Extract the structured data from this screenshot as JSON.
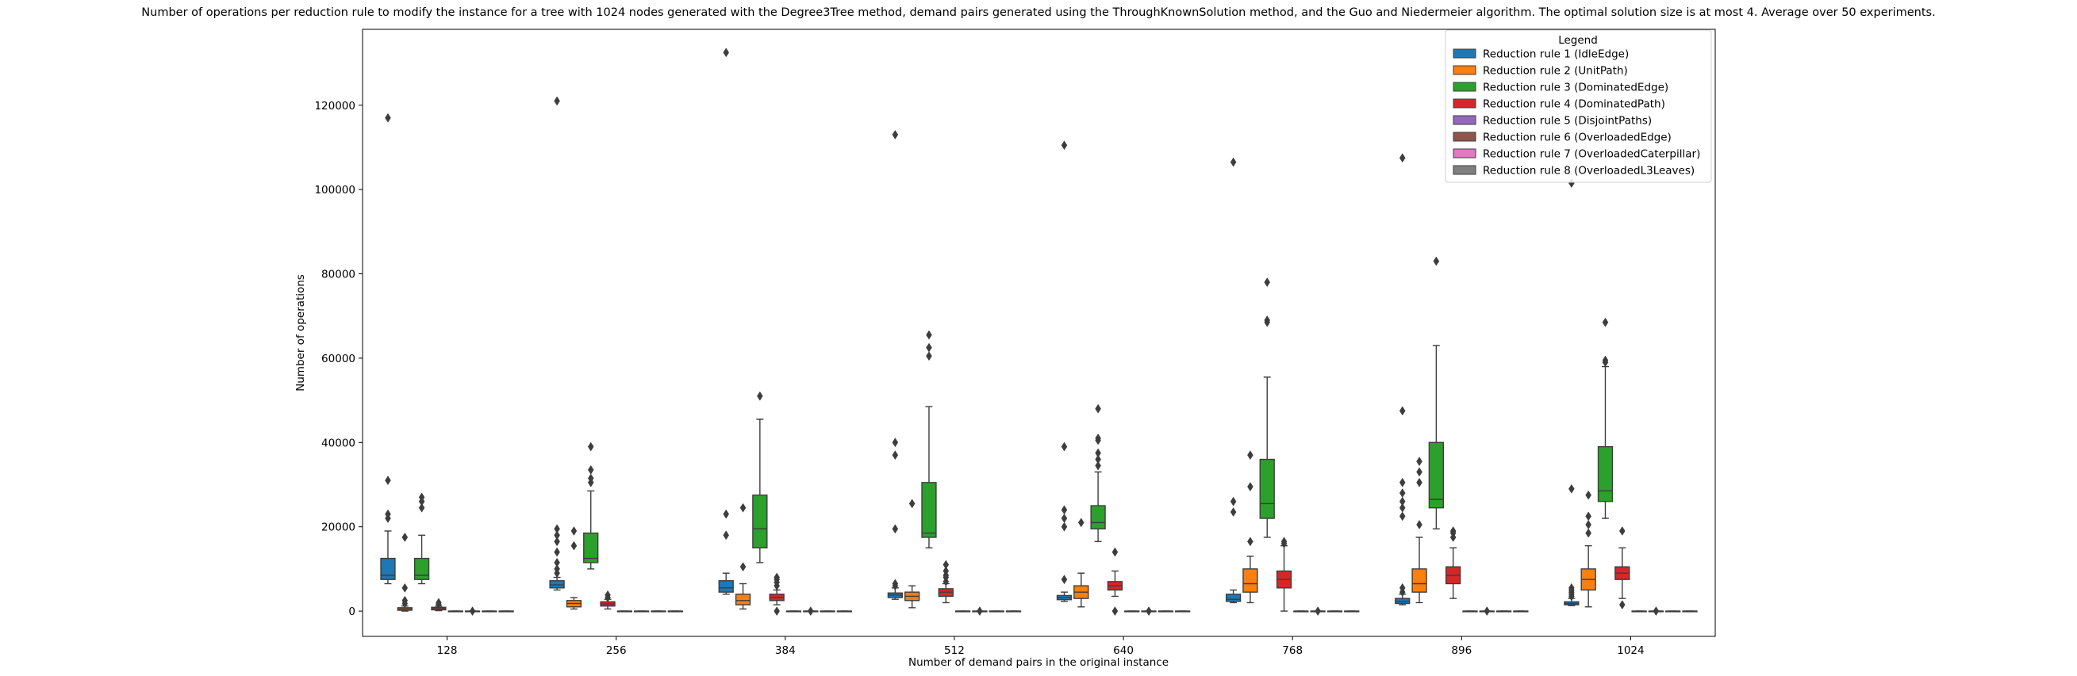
{
  "chart_data": {
    "type": "box",
    "title": "Number of operations per reduction rule to modify the instance for a tree with 1024 nodes generated with the Degree3Tree method, demand pairs generated using the ThroughKnownSolution method, and the Guo and Niedermeier algorithm. The optimal solution size is at most 4. Average over 50 experiments.",
    "xlabel": "Number of demand pairs in the original instance",
    "ylabel": "Number of operations",
    "categories": [
      "128",
      "256",
      "384",
      "512",
      "640",
      "768",
      "896",
      "1024"
    ],
    "ylim": [
      -6000,
      138000
    ],
    "yticks": [
      0,
      20000,
      40000,
      60000,
      80000,
      100000,
      120000
    ],
    "ytick_labels": [
      "0",
      "20000",
      "40000",
      "60000",
      "80000",
      "100000",
      "120000"
    ],
    "grid": false,
    "legend": {
      "title": "Legend",
      "placement": "top-right"
    },
    "series": [
      {
        "name": "Reduction rule 1 (IdleEdge)",
        "color": "#1f77b4",
        "boxes": [
          {
            "whislo": 6500,
            "q1": 7500,
            "med": 8500,
            "q3": 12500,
            "whishi": 19000,
            "fliers": [
              22000,
              23000,
              31000,
              117000
            ]
          },
          {
            "whislo": 5000,
            "q1": 5500,
            "med": 6200,
            "q3": 7200,
            "whishi": 8000,
            "fliers": [
              9000,
              10000,
              11500,
              14000,
              16500,
              18000,
              19500,
              121000
            ]
          },
          {
            "whislo": 4000,
            "q1": 4500,
            "med": 5500,
            "q3": 7200,
            "whishi": 9000,
            "fliers": [
              18000,
              23000,
              132500
            ]
          },
          {
            "whislo": 2800,
            "q1": 3200,
            "med": 3800,
            "q3": 4300,
            "whishi": 5500,
            "fliers": [
              6000,
              6500,
              19500,
              37000,
              40000,
              113000
            ]
          },
          {
            "whislo": 2300,
            "q1": 2700,
            "med": 3200,
            "q3": 3700,
            "whishi": 4500,
            "fliers": [
              7500,
              20000,
              22000,
              24000,
              39000,
              110500
            ]
          },
          {
            "whislo": 2000,
            "q1": 2300,
            "med": 2800,
            "q3": 4000,
            "whishi": 5000,
            "fliers": [
              23500,
              26000,
              106500
            ]
          },
          {
            "whislo": 1500,
            "q1": 1800,
            "med": 2300,
            "q3": 3000,
            "whishi": 4000,
            "fliers": [
              4500,
              5500,
              22500,
              24500,
              26000,
              28000,
              30500,
              47500,
              107500
            ]
          },
          {
            "whislo": 1300,
            "q1": 1500,
            "med": 1800,
            "q3": 2200,
            "whishi": 3000,
            "fliers": [
              3500,
              4000,
              4500,
              5000,
              5500,
              29000,
              101500
            ]
          }
        ]
      },
      {
        "name": "Reduction rule 2 (UnitPath)",
        "color": "#ff7f0e",
        "boxes": [
          {
            "whislo": 0,
            "q1": 200,
            "med": 500,
            "q3": 800,
            "whishi": 1200,
            "fliers": [
              1800,
              2500,
              5500,
              17500
            ]
          },
          {
            "whislo": 500,
            "q1": 1000,
            "med": 1800,
            "q3": 2500,
            "whishi": 3200,
            "fliers": [
              15500,
              19000
            ]
          },
          {
            "whislo": 500,
            "q1": 1500,
            "med": 2500,
            "q3": 4000,
            "whishi": 6500,
            "fliers": [
              10500,
              24500
            ]
          },
          {
            "whislo": 800,
            "q1": 2500,
            "med": 3500,
            "q3": 4500,
            "whishi": 6000,
            "fliers": [
              25500
            ]
          },
          {
            "whislo": 1000,
            "q1": 3000,
            "med": 4500,
            "q3": 6000,
            "whishi": 9000,
            "fliers": [
              21000
            ]
          },
          {
            "whislo": 2000,
            "q1": 4500,
            "med": 6500,
            "q3": 10000,
            "whishi": 13000,
            "fliers": [
              16500,
              29500,
              37000
            ]
          },
          {
            "whislo": 2000,
            "q1": 4500,
            "med": 6500,
            "q3": 10000,
            "whishi": 17500,
            "fliers": [
              20500,
              30500,
              33000,
              35500
            ]
          },
          {
            "whislo": 1000,
            "q1": 5000,
            "med": 7500,
            "q3": 10000,
            "whishi": 15500,
            "fliers": [
              18500,
              20500,
              22500,
              27500
            ]
          }
        ]
      },
      {
        "name": "Reduction rule 3 (DominatedEdge)",
        "color": "#2ca02c",
        "boxes": [
          {
            "whislo": 6500,
            "q1": 7500,
            "med": 8500,
            "q3": 12500,
            "whishi": 18000,
            "fliers": [
              24500,
              26000,
              27000
            ]
          },
          {
            "whislo": 10000,
            "q1": 11500,
            "med": 12500,
            "q3": 18500,
            "whishi": 28500,
            "fliers": [
              30500,
              31500,
              33500,
              39000
            ]
          },
          {
            "whislo": 11500,
            "q1": 15000,
            "med": 19500,
            "q3": 27500,
            "whishi": 45500,
            "fliers": [
              51000
            ]
          },
          {
            "whislo": 15000,
            "q1": 17500,
            "med": 18500,
            "q3": 30500,
            "whishi": 48500,
            "fliers": [
              60500,
              62500,
              65500
            ]
          },
          {
            "whislo": 16500,
            "q1": 19500,
            "med": 21000,
            "q3": 25000,
            "whishi": 33000,
            "fliers": [
              34500,
              36000,
              37500,
              40500,
              41000,
              48000
            ]
          },
          {
            "whislo": 17500,
            "q1": 22000,
            "med": 25500,
            "q3": 36000,
            "whishi": 55500,
            "fliers": [
              68500,
              69000,
              78000
            ]
          },
          {
            "whislo": 19500,
            "q1": 24500,
            "med": 26500,
            "q3": 40000,
            "whishi": 63000,
            "fliers": [
              83000
            ]
          },
          {
            "whislo": 22000,
            "q1": 26000,
            "med": 28500,
            "q3": 39000,
            "whishi": 58000,
            "fliers": [
              59000,
              59500,
              68500
            ]
          }
        ]
      },
      {
        "name": "Reduction rule 4 (DominatedPath)",
        "color": "#d62728",
        "boxes": [
          {
            "whislo": 100,
            "q1": 300,
            "med": 600,
            "q3": 900,
            "whishi": 1200,
            "fliers": [
              1600,
              2000
            ]
          },
          {
            "whislo": 500,
            "q1": 1200,
            "med": 1700,
            "q3": 2200,
            "whishi": 2800,
            "fliers": [
              3200,
              3800
            ]
          },
          {
            "whislo": 1500,
            "q1": 2500,
            "med": 3200,
            "q3": 4000,
            "whishi": 5000,
            "fliers": [
              0,
              6000,
              6800,
              7500,
              8000
            ]
          },
          {
            "whislo": 2000,
            "q1": 3500,
            "med": 4500,
            "q3": 5300,
            "whishi": 6500,
            "fliers": [
              7000,
              8000,
              8500,
              9500,
              11000
            ]
          },
          {
            "whislo": 3500,
            "q1": 5000,
            "med": 6000,
            "q3": 7000,
            "whishi": 9500,
            "fliers": [
              0,
              14000
            ]
          },
          {
            "whislo": 0,
            "q1": 5500,
            "med": 7500,
            "q3": 9500,
            "whishi": 15500,
            "fliers": [
              16000,
              16500
            ]
          },
          {
            "whislo": 3000,
            "q1": 6500,
            "med": 8500,
            "q3": 10500,
            "whishi": 15000,
            "fliers": [
              17500,
              18500,
              19000
            ]
          },
          {
            "whislo": 3000,
            "q1": 7500,
            "med": 9000,
            "q3": 10500,
            "whishi": 15000,
            "fliers": [
              1500,
              19000
            ]
          }
        ]
      },
      {
        "name": "Reduction rule 5 (DisjointPaths)",
        "color": "#9467bd",
        "boxes": [
          {
            "whislo": 0,
            "q1": 0,
            "med": 0,
            "q3": 0,
            "whishi": 0,
            "fliers": []
          },
          {
            "whislo": 0,
            "q1": 0,
            "med": 0,
            "q3": 0,
            "whishi": 0,
            "fliers": []
          },
          {
            "whislo": 0,
            "q1": 0,
            "med": 0,
            "q3": 0,
            "whishi": 0,
            "fliers": []
          },
          {
            "whislo": 0,
            "q1": 0,
            "med": 0,
            "q3": 0,
            "whishi": 0,
            "fliers": []
          },
          {
            "whislo": 0,
            "q1": 0,
            "med": 0,
            "q3": 0,
            "whishi": 0,
            "fliers": []
          },
          {
            "whislo": 0,
            "q1": 0,
            "med": 0,
            "q3": 0,
            "whishi": 0,
            "fliers": []
          },
          {
            "whislo": 0,
            "q1": 0,
            "med": 0,
            "q3": 0,
            "whishi": 0,
            "fliers": []
          },
          {
            "whislo": 0,
            "q1": 0,
            "med": 0,
            "q3": 0,
            "whishi": 0,
            "fliers": []
          }
        ]
      },
      {
        "name": "Reduction rule 6 (OverloadedEdge)",
        "color": "#8c564b",
        "boxes": [
          {
            "whislo": 0,
            "q1": 0,
            "med": 0,
            "q3": 0,
            "whishi": 0,
            "fliers": [
              0
            ]
          },
          {
            "whislo": 0,
            "q1": 0,
            "med": 0,
            "q3": 0,
            "whishi": 0,
            "fliers": []
          },
          {
            "whislo": 0,
            "q1": 0,
            "med": 0,
            "q3": 0,
            "whishi": 0,
            "fliers": [
              0
            ]
          },
          {
            "whislo": 0,
            "q1": 0,
            "med": 0,
            "q3": 0,
            "whishi": 0,
            "fliers": [
              0
            ]
          },
          {
            "whislo": 0,
            "q1": 0,
            "med": 0,
            "q3": 0,
            "whishi": 0,
            "fliers": [
              0
            ]
          },
          {
            "whislo": 0,
            "q1": 0,
            "med": 0,
            "q3": 0,
            "whishi": 0,
            "fliers": [
              0
            ]
          },
          {
            "whislo": 0,
            "q1": 0,
            "med": 0,
            "q3": 0,
            "whishi": 0,
            "fliers": [
              0
            ]
          },
          {
            "whislo": 0,
            "q1": 0,
            "med": 0,
            "q3": 0,
            "whishi": 0,
            "fliers": [
              0
            ]
          }
        ]
      },
      {
        "name": "Reduction rule 7 (OverloadedCaterpillar)",
        "color": "#e377c2",
        "boxes": [
          {
            "whislo": 0,
            "q1": 0,
            "med": 0,
            "q3": 0,
            "whishi": 0,
            "fliers": []
          },
          {
            "whislo": 0,
            "q1": 0,
            "med": 0,
            "q3": 0,
            "whishi": 0,
            "fliers": []
          },
          {
            "whislo": 0,
            "q1": 0,
            "med": 0,
            "q3": 0,
            "whishi": 0,
            "fliers": []
          },
          {
            "whislo": 0,
            "q1": 0,
            "med": 0,
            "q3": 0,
            "whishi": 0,
            "fliers": []
          },
          {
            "whislo": 0,
            "q1": 0,
            "med": 0,
            "q3": 0,
            "whishi": 0,
            "fliers": []
          },
          {
            "whislo": 0,
            "q1": 0,
            "med": 0,
            "q3": 0,
            "whishi": 0,
            "fliers": []
          },
          {
            "whislo": 0,
            "q1": 0,
            "med": 0,
            "q3": 0,
            "whishi": 0,
            "fliers": []
          },
          {
            "whislo": 0,
            "q1": 0,
            "med": 0,
            "q3": 0,
            "whishi": 0,
            "fliers": []
          }
        ]
      },
      {
        "name": "Reduction rule 8 (OverloadedL3Leaves)",
        "color": "#7f7f7f",
        "boxes": [
          {
            "whislo": 0,
            "q1": 0,
            "med": 0,
            "q3": 0,
            "whishi": 0,
            "fliers": []
          },
          {
            "whislo": 0,
            "q1": 0,
            "med": 0,
            "q3": 0,
            "whishi": 0,
            "fliers": []
          },
          {
            "whislo": 0,
            "q1": 0,
            "med": 0,
            "q3": 0,
            "whishi": 0,
            "fliers": []
          },
          {
            "whislo": 0,
            "q1": 0,
            "med": 0,
            "q3": 0,
            "whishi": 0,
            "fliers": []
          },
          {
            "whislo": 0,
            "q1": 0,
            "med": 0,
            "q3": 0,
            "whishi": 0,
            "fliers": []
          },
          {
            "whislo": 0,
            "q1": 0,
            "med": 0,
            "q3": 0,
            "whishi": 0,
            "fliers": []
          },
          {
            "whislo": 0,
            "q1": 0,
            "med": 0,
            "q3": 0,
            "whishi": 0,
            "fliers": []
          },
          {
            "whislo": 0,
            "q1": 0,
            "med": 0,
            "q3": 0,
            "whishi": 0,
            "fliers": []
          }
        ]
      }
    ]
  }
}
